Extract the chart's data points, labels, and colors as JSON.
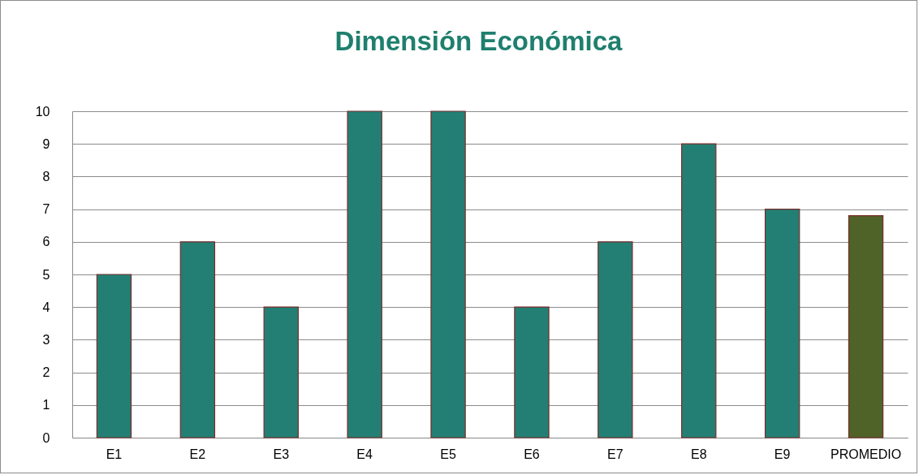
{
  "chart_data": {
    "type": "bar",
    "title": "Dimensión Económica",
    "categories": [
      "E1",
      "E2",
      "E3",
      "E4",
      "E5",
      "E6",
      "E7",
      "E8",
      "E9",
      "PROMEDIO"
    ],
    "values": [
      5,
      6,
      4,
      10,
      10,
      4,
      6,
      9,
      7,
      6.8
    ],
    "colors": [
      "#237f74",
      "#237f74",
      "#237f74",
      "#237f74",
      "#237f74",
      "#237f74",
      "#237f74",
      "#237f74",
      "#237f74",
      "#4f6228"
    ],
    "ylim": [
      0,
      10
    ],
    "yticks": [
      0,
      1,
      2,
      3,
      4,
      5,
      6,
      7,
      8,
      9,
      10
    ],
    "grid": "y",
    "legend": false
  }
}
